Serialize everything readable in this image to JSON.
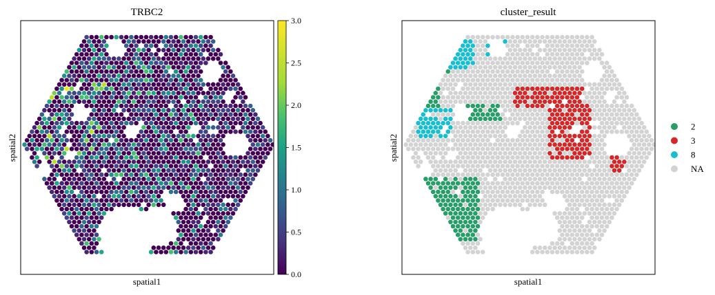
{
  "chart_data": [
    {
      "type": "scatter",
      "title": "TRBC2",
      "xlabel": "spatial1",
      "ylabel": "spatial2",
      "colorbar": {
        "colormap": "viridis",
        "vmin": 0.0,
        "vmax": 3.0,
        "ticks": [
          "0.0",
          "0.5",
          "1.0",
          "1.5",
          "2.0",
          "2.5",
          "3.0"
        ]
      },
      "grid": false,
      "note": "spatial spot expression; values read approximately"
    },
    {
      "type": "scatter",
      "title": "cluster_result",
      "xlabel": "spatial1",
      "ylabel": "spatial2",
      "legend_position": "right",
      "series": [
        {
          "name": "2",
          "color": "#279e68"
        },
        {
          "name": "3",
          "color": "#d62728"
        },
        {
          "name": "8",
          "color": "#17becf"
        },
        {
          "name": "NA",
          "color": "#d3d3d3"
        }
      ],
      "grid": false
    }
  ]
}
